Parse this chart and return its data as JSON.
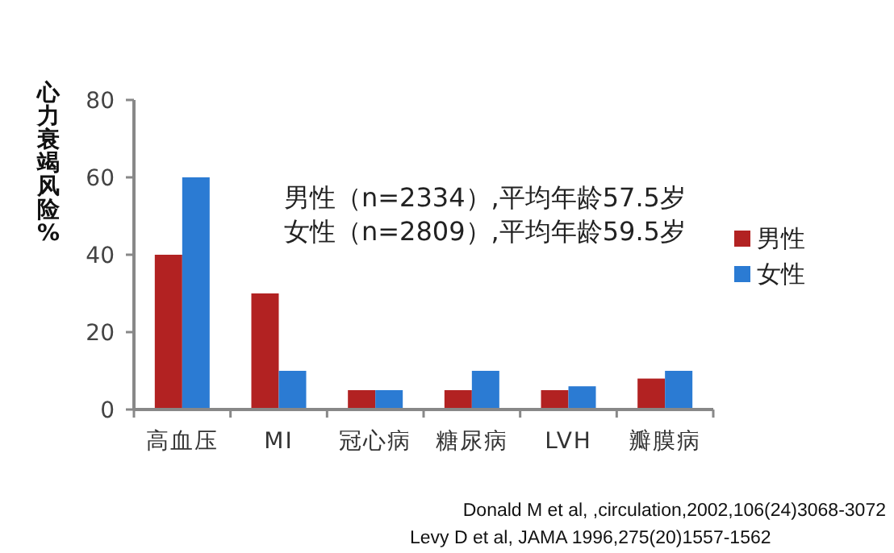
{
  "chart_data": {
    "type": "bar",
    "ylabel": "心力衰竭风险%",
    "categories": [
      "高血压",
      "MI",
      "冠心病",
      "糖尿病",
      "LVH",
      "瓣膜病"
    ],
    "series": [
      {
        "name": "男性",
        "color": "#b22222",
        "values": [
          40,
          30,
          5,
          5,
          5,
          8
        ]
      },
      {
        "name": "女性",
        "color": "#2b7bd3",
        "values": [
          60,
          10,
          5,
          10,
          6,
          10
        ]
      }
    ],
    "ylim": [
      0,
      80
    ],
    "yticks": [
      0,
      20,
      40,
      60,
      80
    ],
    "legend": "right",
    "annotations": [
      "男性（n=2334）,平均年龄57.5岁",
      "女性（n=2809）,平均年龄59.5岁",
      "Donald M et al, ,circulation,2002,106(24)3068-3072",
      "Levy D et al, JAMA 1996,275(20)1557-1562"
    ]
  }
}
